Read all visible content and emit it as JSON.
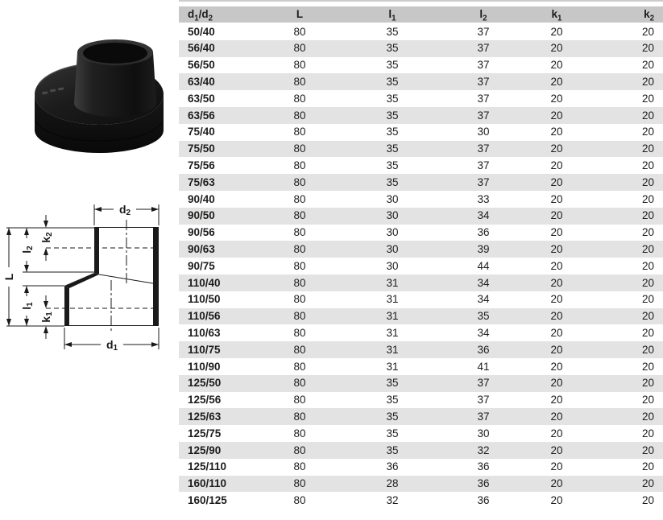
{
  "colors": {
    "header_bg": "#c7c7c7",
    "row_alt_bg": "#e3e3e3",
    "top_strip": "#cdcdcd",
    "text": "#1d1d1b",
    "ink": "#1a1a1a"
  },
  "table": {
    "columns": [
      "d_1/d_2",
      "L",
      "l_1",
      "l_2",
      "k_1",
      "k_2"
    ],
    "rows": [
      [
        "50/40",
        "80",
        "35",
        "37",
        "20",
        "20"
      ],
      [
        "56/40",
        "80",
        "35",
        "37",
        "20",
        "20"
      ],
      [
        "56/50",
        "80",
        "35",
        "37",
        "20",
        "20"
      ],
      [
        "63/40",
        "80",
        "35",
        "37",
        "20",
        "20"
      ],
      [
        "63/50",
        "80",
        "35",
        "37",
        "20",
        "20"
      ],
      [
        "63/56",
        "80",
        "35",
        "37",
        "20",
        "20"
      ],
      [
        "75/40",
        "80",
        "35",
        "30",
        "20",
        "20"
      ],
      [
        "75/50",
        "80",
        "35",
        "37",
        "20",
        "20"
      ],
      [
        "75/56",
        "80",
        "35",
        "37",
        "20",
        "20"
      ],
      [
        "75/63",
        "80",
        "35",
        "37",
        "20",
        "20"
      ],
      [
        "90/40",
        "80",
        "30",
        "33",
        "20",
        "20"
      ],
      [
        "90/50",
        "80",
        "30",
        "34",
        "20",
        "20"
      ],
      [
        "90/56",
        "80",
        "30",
        "36",
        "20",
        "20"
      ],
      [
        "90/63",
        "80",
        "30",
        "39",
        "20",
        "20"
      ],
      [
        "90/75",
        "80",
        "30",
        "44",
        "20",
        "20"
      ],
      [
        "110/40",
        "80",
        "31",
        "34",
        "20",
        "20"
      ],
      [
        "110/50",
        "80",
        "31",
        "34",
        "20",
        "20"
      ],
      [
        "110/56",
        "80",
        "31",
        "35",
        "20",
        "20"
      ],
      [
        "110/63",
        "80",
        "31",
        "34",
        "20",
        "20"
      ],
      [
        "110/75",
        "80",
        "31",
        "36",
        "20",
        "20"
      ],
      [
        "110/90",
        "80",
        "31",
        "41",
        "20",
        "20"
      ],
      [
        "125/50",
        "80",
        "35",
        "37",
        "20",
        "20"
      ],
      [
        "125/56",
        "80",
        "35",
        "37",
        "20",
        "20"
      ],
      [
        "125/63",
        "80",
        "35",
        "37",
        "20",
        "20"
      ],
      [
        "125/75",
        "80",
        "35",
        "30",
        "20",
        "20"
      ],
      [
        "125/90",
        "80",
        "35",
        "32",
        "20",
        "20"
      ],
      [
        "125/110",
        "80",
        "36",
        "36",
        "20",
        "20"
      ],
      [
        "160/110",
        "80",
        "28",
        "36",
        "20",
        "20"
      ],
      [
        "160/125",
        "80",
        "32",
        "36",
        "20",
        "20"
      ]
    ]
  },
  "diagram": {
    "labels": {
      "d2": {
        "base": "d",
        "sub": "2"
      },
      "d1": {
        "base": "d",
        "sub": "1"
      },
      "L": {
        "base": "L",
        "sub": ""
      },
      "l2": {
        "base": "l",
        "sub": "2"
      },
      "l1": {
        "base": "l",
        "sub": "1"
      },
      "k2": {
        "base": "k",
        "sub": "2"
      },
      "k1": {
        "base": "k",
        "sub": "1"
      }
    }
  }
}
